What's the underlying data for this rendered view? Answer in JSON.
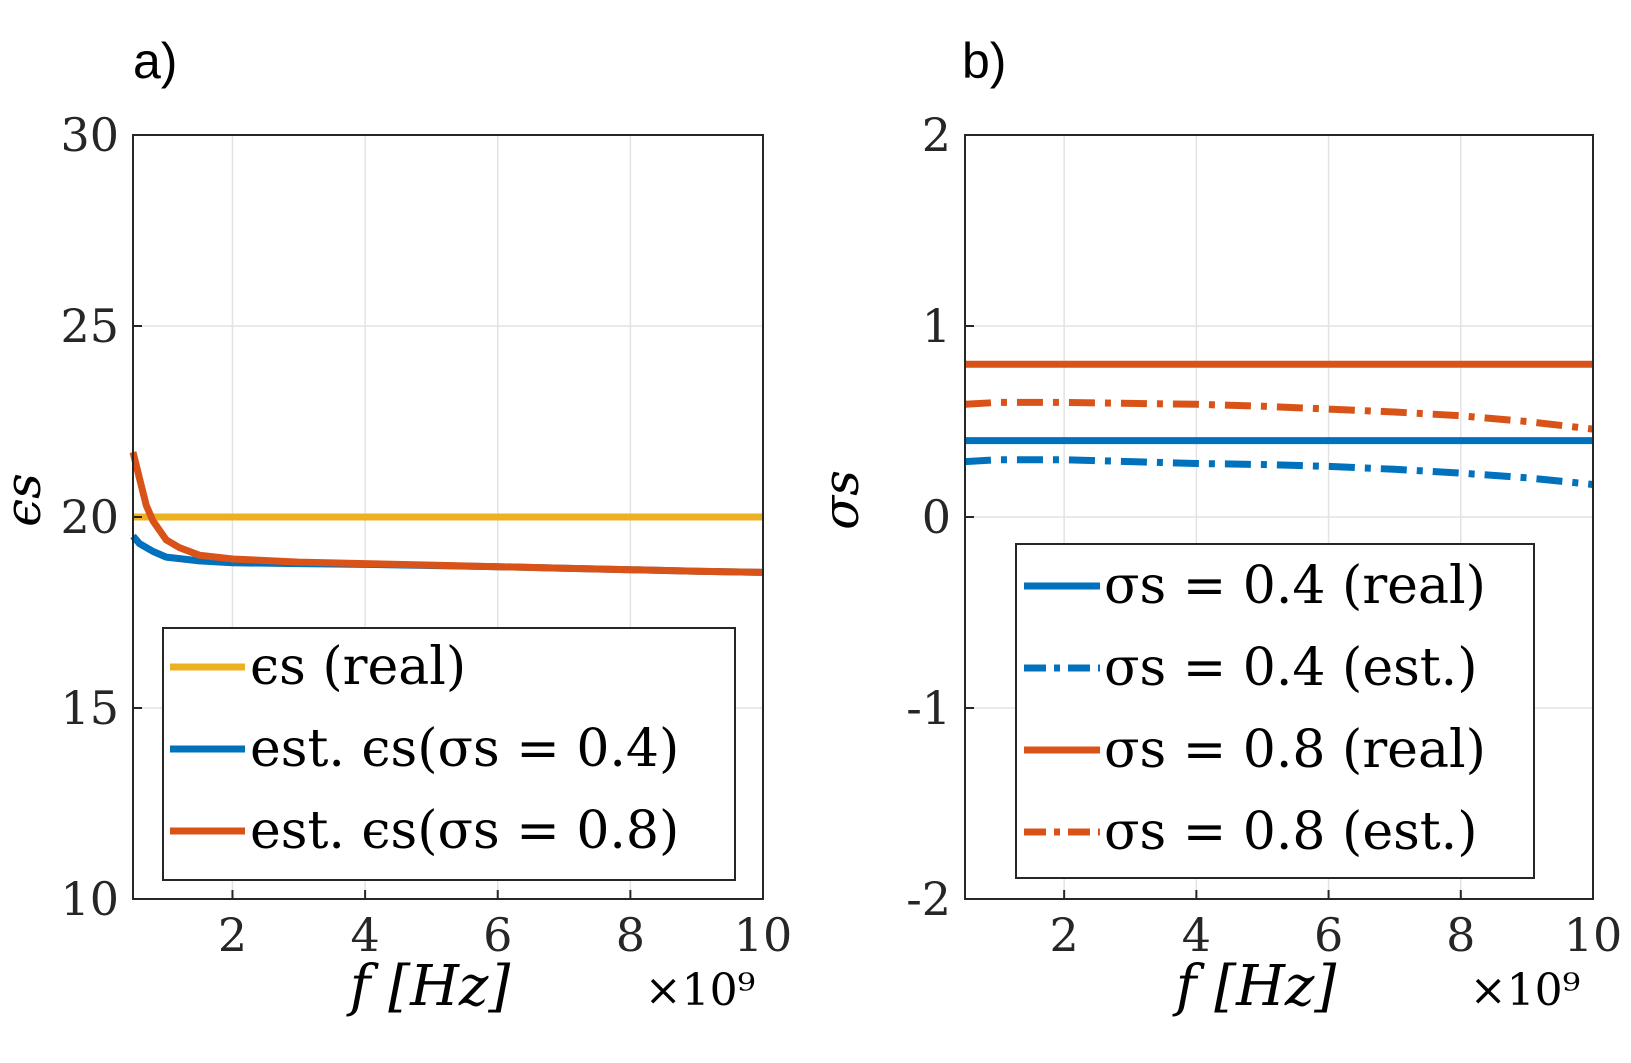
{
  "chart_data": [
    {
      "panel": "a)",
      "type": "line",
      "ylabel": "ϵs",
      "xlabel": "f [Hz]",
      "x_multiplier": "×10⁹",
      "xlim": [
        0.5,
        10
      ],
      "ylim": [
        10,
        30
      ],
      "xticks": [
        "2",
        "4",
        "6",
        "8",
        "10"
      ],
      "yticks": [
        "10",
        "15",
        "20",
        "25",
        "30"
      ],
      "grid": true,
      "legend_position": "bottom-left",
      "series": [
        {
          "name": "ϵs (real)",
          "color": "#EDB120",
          "style": "solid",
          "x": [
            0.5,
            10
          ],
          "y": [
            20,
            20
          ]
        },
        {
          "name": "est. ϵs(σs = 0.4)",
          "color": "#0072BD",
          "style": "solid",
          "x": [
            0.5,
            0.6,
            0.8,
            1,
            1.5,
            2,
            3,
            4,
            5,
            6,
            7,
            8,
            9,
            10
          ],
          "y": [
            19.5,
            19.3,
            19.1,
            18.95,
            18.85,
            18.8,
            18.78,
            18.76,
            18.73,
            18.7,
            18.66,
            18.62,
            18.58,
            18.55
          ]
        },
        {
          "name": "est. ϵs(σs = 0.8)",
          "color": "#D95319",
          "style": "solid",
          "x": [
            0.5,
            0.6,
            0.7,
            0.8,
            1,
            1.2,
            1.5,
            2,
            3,
            4,
            5,
            6,
            7,
            8,
            9,
            10
          ],
          "y": [
            21.7,
            21.0,
            20.3,
            19.9,
            19.4,
            19.2,
            19.0,
            18.9,
            18.82,
            18.78,
            18.74,
            18.7,
            18.66,
            18.62,
            18.58,
            18.55
          ]
        }
      ],
      "legend": [
        "ϵs (real)",
        "est. ϵs(σs = 0.4)",
        "est. ϵs(σs = 0.8)"
      ]
    },
    {
      "panel": "b)",
      "type": "line",
      "ylabel": "σs",
      "xlabel": "f [Hz]",
      "x_multiplier": "×10⁹",
      "xlim": [
        0.5,
        10
      ],
      "ylim": [
        -2,
        2
      ],
      "xticks": [
        "2",
        "4",
        "6",
        "8",
        "10"
      ],
      "yticks": [
        "-2",
        "-1",
        "0",
        "1",
        "2"
      ],
      "grid": true,
      "legend_position": "bottom-left",
      "series": [
        {
          "name": "σs = 0.4 (real)",
          "color": "#0072BD",
          "style": "solid",
          "x": [
            0.5,
            10
          ],
          "y": [
            0.4,
            0.4
          ]
        },
        {
          "name": "σs = 0.4 (est.)",
          "color": "#0072BD",
          "style": "dashdot",
          "x": [
            0.5,
            1,
            2,
            3,
            4,
            5,
            6,
            7,
            8,
            9,
            10
          ],
          "y": [
            0.29,
            0.3,
            0.3,
            0.29,
            0.28,
            0.275,
            0.265,
            0.25,
            0.23,
            0.205,
            0.17
          ]
        },
        {
          "name": "σs = 0.8 (real)",
          "color": "#D95319",
          "style": "solid",
          "x": [
            0.5,
            10
          ],
          "y": [
            0.8,
            0.8
          ]
        },
        {
          "name": "σs = 0.8 (est.)",
          "color": "#D95319",
          "style": "dashdot",
          "x": [
            0.5,
            1,
            2,
            3,
            4,
            5,
            6,
            7,
            8,
            9,
            10
          ],
          "y": [
            0.59,
            0.6,
            0.6,
            0.595,
            0.59,
            0.58,
            0.565,
            0.55,
            0.53,
            0.5,
            0.46
          ]
        }
      ],
      "legend": [
        "σs = 0.4 (real)",
        "σs = 0.4 (est.)",
        "σs = 0.8 (real)",
        "σs = 0.8 (est.)"
      ]
    }
  ]
}
